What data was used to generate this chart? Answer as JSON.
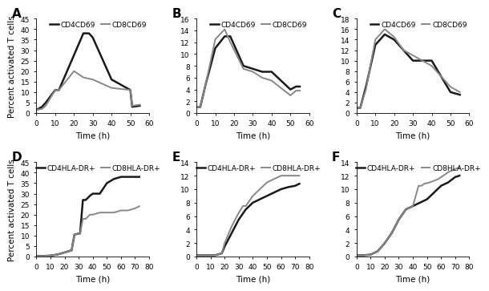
{
  "panels": [
    {
      "label": "A",
      "xlim": [
        0,
        60
      ],
      "ylim": [
        0,
        45
      ],
      "yticks": [
        0,
        5,
        10,
        15,
        20,
        25,
        30,
        35,
        40,
        45
      ],
      "xticks": [
        0,
        10,
        20,
        30,
        40,
        50,
        60
      ],
      "legend": [
        "CD4CD69",
        "CD8CD69"
      ],
      "series": [
        {
          "x": [
            0,
            3,
            5,
            10,
            12,
            25,
            28,
            30,
            40,
            50,
            51,
            55
          ],
          "y": [
            1.5,
            3,
            5,
            11,
            11,
            38,
            38,
            36,
            16,
            11,
            3,
            3.5
          ],
          "color": "#1a1a1a",
          "lw": 1.8
        },
        {
          "x": [
            0,
            3,
            5,
            10,
            12,
            20,
            25,
            30,
            40,
            50,
            51,
            55
          ],
          "y": [
            1.5,
            2,
            3.5,
            11,
            11,
            20,
            17,
            16,
            12,
            11,
            3.5,
            4
          ],
          "color": "#888888",
          "lw": 1.4
        }
      ]
    },
    {
      "label": "B",
      "xlim": [
        0,
        60
      ],
      "ylim": [
        0,
        16
      ],
      "yticks": [
        0,
        2,
        4,
        6,
        8,
        10,
        12,
        14,
        16
      ],
      "xticks": [
        0,
        10,
        20,
        30,
        40,
        50,
        60
      ],
      "legend": [
        "CD4CD69",
        "CD8CD69"
      ],
      "series": [
        {
          "x": [
            0,
            2,
            5,
            10,
            15,
            18,
            25,
            30,
            35,
            40,
            50,
            53,
            55
          ],
          "y": [
            1,
            1,
            5,
            11,
            13,
            13,
            8,
            7.5,
            7,
            7,
            4,
            4.5,
            4.5
          ],
          "color": "#1a1a1a",
          "lw": 1.8
        },
        {
          "x": [
            0,
            2,
            5,
            10,
            15,
            18,
            25,
            30,
            35,
            40,
            50,
            53,
            55
          ],
          "y": [
            1,
            1,
            5,
            12.5,
            14.2,
            12,
            7.5,
            7,
            6,
            5.5,
            3,
            3.8,
            3.8
          ],
          "color": "#888888",
          "lw": 1.4
        }
      ]
    },
    {
      "label": "C",
      "xlim": [
        0,
        60
      ],
      "ylim": [
        0,
        18
      ],
      "yticks": [
        0,
        2,
        4,
        6,
        8,
        10,
        12,
        14,
        16,
        18
      ],
      "xticks": [
        0,
        10,
        20,
        30,
        40,
        50,
        60
      ],
      "legend": [
        "CD4CD69",
        "CD8CD69"
      ],
      "series": [
        {
          "x": [
            0,
            2,
            5,
            10,
            15,
            20,
            25,
            30,
            35,
            40,
            50,
            55
          ],
          "y": [
            1,
            1,
            5,
            13,
            15,
            14,
            12,
            10,
            10,
            10,
            4,
            3.5
          ],
          "color": "#1a1a1a",
          "lw": 1.8
        },
        {
          "x": [
            0,
            2,
            5,
            10,
            15,
            20,
            25,
            30,
            35,
            40,
            50,
            55
          ],
          "y": [
            1,
            1,
            4.5,
            14,
            16,
            14.5,
            12,
            11,
            10,
            9,
            5,
            4
          ],
          "color": "#888888",
          "lw": 1.4
        }
      ]
    },
    {
      "label": "D",
      "xlim": [
        0,
        80
      ],
      "ylim": [
        0,
        45
      ],
      "yticks": [
        0,
        5,
        10,
        15,
        20,
        25,
        30,
        35,
        40,
        45
      ],
      "xticks": [
        0,
        10,
        20,
        30,
        40,
        50,
        60,
        70,
        80
      ],
      "legend": [
        "CD4HLA-DR+",
        "CD8HLA-DR+"
      ],
      "series": [
        {
          "x": [
            0,
            5,
            10,
            15,
            20,
            25,
            27,
            30,
            31,
            33,
            35,
            38,
            40,
            45,
            50,
            55,
            60,
            62,
            65,
            70,
            73
          ],
          "y": [
            0.3,
            0.3,
            0.5,
            1,
            2,
            3,
            10.5,
            11,
            11,
            27,
            27,
            29,
            30,
            30,
            35,
            37,
            38,
            38,
            38,
            38,
            38
          ],
          "color": "#1a1a1a",
          "lw": 1.8
        },
        {
          "x": [
            0,
            5,
            10,
            15,
            20,
            25,
            27,
            30,
            31,
            33,
            35,
            38,
            40,
            45,
            50,
            55,
            60,
            65,
            70,
            73
          ],
          "y": [
            0.3,
            0.3,
            0.5,
            1,
            2,
            3,
            10.5,
            11,
            11,
            18,
            18,
            20,
            20,
            21,
            21,
            21,
            22,
            22,
            23,
            24
          ],
          "color": "#888888",
          "lw": 1.4
        }
      ]
    },
    {
      "label": "E",
      "xlim": [
        0,
        80
      ],
      "ylim": [
        0,
        14
      ],
      "yticks": [
        0,
        2,
        4,
        6,
        8,
        10,
        12,
        14
      ],
      "xticks": [
        0,
        10,
        20,
        30,
        40,
        50,
        60,
        70,
        80
      ],
      "legend": [
        "CD4HLA-DR+",
        "CD8HLA-DR+"
      ],
      "series": [
        {
          "x": [
            0,
            5,
            10,
            13,
            15,
            18,
            20,
            25,
            30,
            35,
            40,
            45,
            50,
            55,
            60,
            65,
            70,
            73
          ],
          "y": [
            0.2,
            0.2,
            0.2,
            0.2,
            0.3,
            0.5,
            1.5,
            3.5,
            5.5,
            7.0,
            8.0,
            8.5,
            9.0,
            9.5,
            10.0,
            10.3,
            10.5,
            10.8
          ],
          "color": "#1a1a1a",
          "lw": 1.8
        },
        {
          "x": [
            0,
            5,
            10,
            13,
            15,
            18,
            20,
            25,
            30,
            33,
            35,
            40,
            45,
            50,
            55,
            60,
            65,
            70,
            73
          ],
          "y": [
            0.2,
            0.2,
            0.2,
            0.2,
            0.3,
            0.5,
            2.0,
            4.5,
            6.5,
            7.5,
            7.5,
            9.0,
            10.0,
            11.0,
            11.5,
            12.0,
            12.0,
            12.0,
            12.0
          ],
          "color": "#888888",
          "lw": 1.4
        }
      ]
    },
    {
      "label": "F",
      "xlim": [
        0,
        80
      ],
      "ylim": [
        0,
        14
      ],
      "yticks": [
        0,
        2,
        4,
        6,
        8,
        10,
        12,
        14
      ],
      "xticks": [
        0,
        10,
        20,
        30,
        40,
        50,
        60,
        70,
        80
      ],
      "legend": [
        "CD4HLA-DR+",
        "CD8HLA-DR+"
      ],
      "series": [
        {
          "x": [
            0,
            5,
            10,
            15,
            20,
            25,
            30,
            35,
            40,
            45,
            50,
            55,
            60,
            65,
            70,
            73
          ],
          "y": [
            0.2,
            0.2,
            0.3,
            0.8,
            2.0,
            3.5,
            5.5,
            7.0,
            7.5,
            8.0,
            8.5,
            9.5,
            10.5,
            11.0,
            11.8,
            12.0
          ],
          "color": "#1a1a1a",
          "lw": 1.8
        },
        {
          "x": [
            0,
            5,
            10,
            15,
            20,
            25,
            30,
            35,
            40,
            44,
            46,
            48,
            52,
            58,
            65,
            70,
            73
          ],
          "y": [
            0.2,
            0.2,
            0.3,
            0.8,
            2.0,
            3.5,
            5.5,
            7.0,
            7.5,
            10.5,
            10.5,
            10.8,
            11.0,
            11.5,
            12.5,
            13.0,
            13.2
          ],
          "color": "#888888",
          "lw": 1.4
        }
      ]
    }
  ],
  "ylabel": "Percent activated T cells",
  "xlabel": "Time (h)",
  "background_color": "#ffffff",
  "tick_fontsize": 6.5,
  "label_fontsize": 7.5,
  "legend_fontsize": 6.5,
  "panel_label_fontsize": 11
}
